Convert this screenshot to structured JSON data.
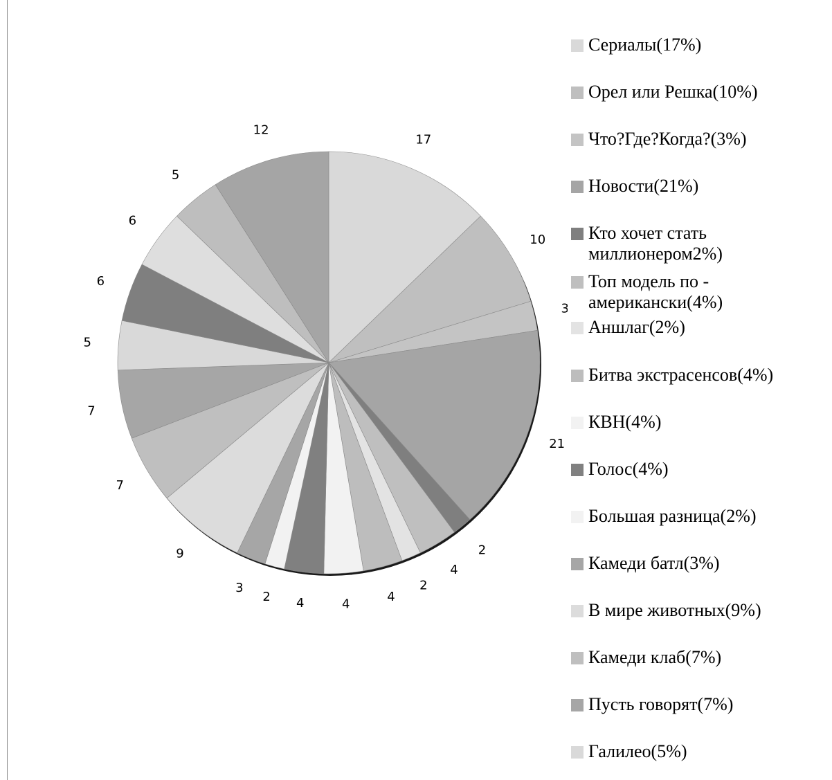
{
  "chart_data": {
    "type": "pie",
    "title": "",
    "legend_position": "right",
    "slices": [
      {
        "legend": "Сериалы(17%)",
        "value": 17,
        "label": "17",
        "color": "#d9d9d9"
      },
      {
        "legend": "Орел или Решка(10%)",
        "value": 10,
        "label": "10",
        "color": "#bfbfbf"
      },
      {
        "legend": "Что?Где?Когда?(3%)",
        "value": 3,
        "label": "3",
        "color": "#c4c4c4"
      },
      {
        "legend": "Новости(21%)",
        "value": 21,
        "label": "21",
        "color": "#a5a5a5"
      },
      {
        "legend": "Кто хочет стать миллионером2%)",
        "value": 2,
        "label": "2",
        "color": "#7f7f7f"
      },
      {
        "legend": "Топ модель по - американски(4%)",
        "value": 4,
        "label": "4",
        "color": "#bfbfbf"
      },
      {
        "legend": "Аншлаг(2%)",
        "value": 2,
        "label": "2",
        "color": "#e3e3e3"
      },
      {
        "legend": "Битва экстрасенсов(4%)",
        "value": 4,
        "label": "4",
        "color": "#bdbdbd"
      },
      {
        "legend": "КВН(4%)",
        "value": 4,
        "label": "4",
        "color": "#f2f2f2"
      },
      {
        "legend": "Голос(4%)",
        "value": 4,
        "label": "4",
        "color": "#808080"
      },
      {
        "legend": "Большая разница(2%)",
        "value": 2,
        "label": "2",
        "color": "#f2f2f2"
      },
      {
        "legend": "Камеди батл(3%)",
        "value": 3,
        "label": "3",
        "color": "#a6a6a6"
      },
      {
        "legend": "В мире животных(9%)",
        "value": 9,
        "label": "9",
        "color": "#dcdcdc"
      },
      {
        "legend": "Камеди клаб(7%)",
        "value": 7,
        "label": "7",
        "color": "#bfbfbf"
      },
      {
        "legend": "Пусть говорят(7%)",
        "value": 7,
        "label": "7",
        "color": "#a6a6a6"
      },
      {
        "legend": "Галилео(5%)",
        "value": 5,
        "label": "5",
        "color": "#d9d9d9"
      },
      {
        "legend": "",
        "value": 6,
        "label": "6",
        "color": "#7f7f7f"
      },
      {
        "legend": "",
        "value": 6,
        "label": "6",
        "color": "#dedede"
      },
      {
        "legend": "",
        "value": 5,
        "label": "5",
        "color": "#bebebe"
      },
      {
        "legend": "",
        "value": 12,
        "label": "12",
        "color": "#a5a5a5"
      }
    ]
  }
}
